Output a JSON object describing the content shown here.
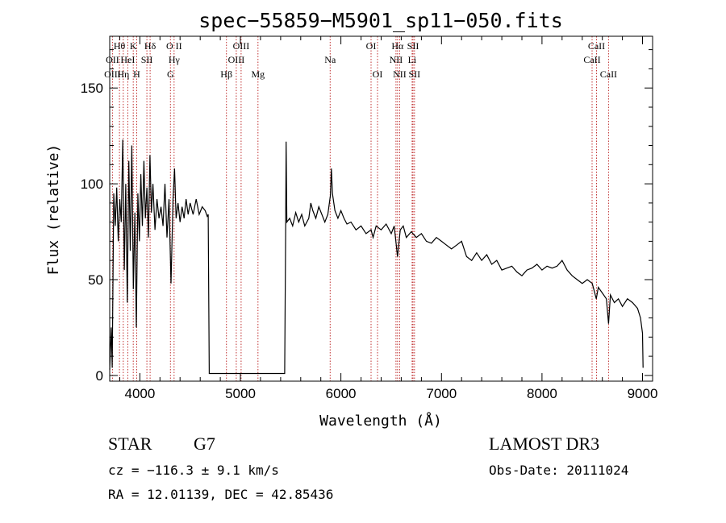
{
  "chart_data": {
    "type": "line",
    "title": "spec−55859−M5901_sp11−050.fits",
    "xlabel": "Wavelength (Å)",
    "ylabel": "Flux (relative)",
    "xlim": [
      3700,
      9100
    ],
    "ylim": [
      -3,
      177
    ],
    "xticks": [
      4000,
      5000,
      6000,
      7000,
      8000,
      9000
    ],
    "yticks": [
      0,
      50,
      100,
      150
    ],
    "series": [
      {
        "name": "flux",
        "color": "#000000",
        "points": [
          [
            3700,
            3
          ],
          [
            3715,
            25
          ],
          [
            3725,
            4
          ],
          [
            3740,
            95
          ],
          [
            3755,
            78
          ],
          [
            3770,
            98
          ],
          [
            3785,
            70
          ],
          [
            3800,
            92
          ],
          [
            3815,
            80
          ],
          [
            3830,
            123
          ],
          [
            3845,
            55
          ],
          [
            3860,
            100
          ],
          [
            3875,
            38
          ],
          [
            3890,
            112
          ],
          [
            3905,
            65
          ],
          [
            3920,
            120
          ],
          [
            3935,
            45
          ],
          [
            3950,
            85
          ],
          [
            3965,
            25
          ],
          [
            3980,
            95
          ],
          [
            3995,
            70
          ],
          [
            4010,
            105
          ],
          [
            4025,
            78
          ],
          [
            4040,
            112
          ],
          [
            4055,
            82
          ],
          [
            4070,
            98
          ],
          [
            4085,
            72
          ],
          [
            4100,
            115
          ],
          [
            4115,
            85
          ],
          [
            4130,
            100
          ],
          [
            4150,
            76
          ],
          [
            4170,
            92
          ],
          [
            4190,
            82
          ],
          [
            4210,
            88
          ],
          [
            4230,
            78
          ],
          [
            4250,
            100
          ],
          [
            4270,
            72
          ],
          [
            4290,
            92
          ],
          [
            4310,
            48
          ],
          [
            4330,
            92
          ],
          [
            4345,
            108
          ],
          [
            4360,
            82
          ],
          [
            4380,
            90
          ],
          [
            4400,
            80
          ],
          [
            4420,
            88
          ],
          [
            4440,
            82
          ],
          [
            4460,
            92
          ],
          [
            4480,
            84
          ],
          [
            4500,
            90
          ],
          [
            4530,
            84
          ],
          [
            4560,
            92
          ],
          [
            4590,
            84
          ],
          [
            4620,
            88
          ],
          [
            4650,
            86
          ],
          [
            4670,
            83
          ],
          [
            4680,
            84
          ],
          [
            4690,
            1
          ],
          [
            5000,
            1
          ],
          [
            5300,
            1
          ],
          [
            5440,
            1
          ],
          [
            5450,
            75
          ],
          [
            5455,
            122
          ],
          [
            5462,
            80
          ],
          [
            5490,
            82
          ],
          [
            5520,
            78
          ],
          [
            5550,
            85
          ],
          [
            5580,
            80
          ],
          [
            5610,
            84
          ],
          [
            5640,
            78
          ],
          [
            5680,
            82
          ],
          [
            5700,
            90
          ],
          [
            5720,
            86
          ],
          [
            5750,
            82
          ],
          [
            5780,
            88
          ],
          [
            5810,
            84
          ],
          [
            5840,
            80
          ],
          [
            5870,
            84
          ],
          [
            5895,
            94
          ],
          [
            5905,
            108
          ],
          [
            5915,
            95
          ],
          [
            5940,
            86
          ],
          [
            5970,
            82
          ],
          [
            6000,
            86
          ],
          [
            6030,
            82
          ],
          [
            6060,
            79
          ],
          [
            6100,
            80
          ],
          [
            6150,
            76
          ],
          [
            6200,
            78
          ],
          [
            6250,
            74
          ],
          [
            6300,
            76
          ],
          [
            6320,
            72
          ],
          [
            6350,
            78
          ],
          [
            6400,
            76
          ],
          [
            6450,
            79
          ],
          [
            6500,
            74
          ],
          [
            6530,
            78
          ],
          [
            6563,
            62
          ],
          [
            6590,
            76
          ],
          [
            6620,
            78
          ],
          [
            6650,
            72
          ],
          [
            6700,
            75
          ],
          [
            6750,
            72
          ],
          [
            6800,
            74
          ],
          [
            6850,
            70
          ],
          [
            6900,
            69
          ],
          [
            6950,
            72
          ],
          [
            7000,
            70
          ],
          [
            7050,
            68
          ],
          [
            7100,
            66
          ],
          [
            7150,
            68
          ],
          [
            7200,
            70
          ],
          [
            7250,
            62
          ],
          [
            7300,
            60
          ],
          [
            7350,
            64
          ],
          [
            7400,
            60
          ],
          [
            7450,
            63
          ],
          [
            7500,
            58
          ],
          [
            7550,
            60
          ],
          [
            7600,
            55
          ],
          [
            7650,
            56
          ],
          [
            7700,
            57
          ],
          [
            7750,
            54
          ],
          [
            7800,
            52
          ],
          [
            7850,
            55
          ],
          [
            7900,
            56
          ],
          [
            7950,
            58
          ],
          [
            8000,
            55
          ],
          [
            8050,
            57
          ],
          [
            8100,
            56
          ],
          [
            8150,
            57
          ],
          [
            8200,
            60
          ],
          [
            8250,
            55
          ],
          [
            8300,
            52
          ],
          [
            8350,
            50
          ],
          [
            8400,
            48
          ],
          [
            8450,
            50
          ],
          [
            8500,
            48
          ],
          [
            8540,
            40
          ],
          [
            8560,
            46
          ],
          [
            8600,
            43
          ],
          [
            8640,
            40
          ],
          [
            8662,
            27
          ],
          [
            8680,
            42
          ],
          [
            8720,
            38
          ],
          [
            8760,
            40
          ],
          [
            8800,
            36
          ],
          [
            8850,
            40
          ],
          [
            8900,
            38
          ],
          [
            8950,
            35
          ],
          [
            8980,
            30
          ],
          [
            9000,
            22
          ],
          [
            9005,
            4
          ]
        ]
      }
    ],
    "line_labels": [
      {
        "text": "Hθ",
        "x": 3797,
        "row": 1
      },
      {
        "text": "OII",
        "x": 3727,
        "row": 2
      },
      {
        "text": "OIII",
        "x": 3727,
        "row": 3
      },
      {
        "text": "K",
        "x": 3934,
        "row": 1
      },
      {
        "text": "HeI",
        "x": 3880,
        "row": 2
      },
      {
        "text": "Hη",
        "x": 3835,
        "row": 3
      },
      {
        "text": "SII",
        "x": 4070,
        "row": 2
      },
      {
        "text": "H",
        "x": 3969,
        "row": 3
      },
      {
        "text": "Hδ",
        "x": 4102,
        "row": 1
      },
      {
        "text": "O II",
        "x": 4340,
        "row": 1
      },
      {
        "text": "Hγ",
        "x": 4340,
        "row": 2
      },
      {
        "text": "G",
        "x": 4304,
        "row": 3
      },
      {
        "text": "OIII",
        "x": 5007,
        "row": 1
      },
      {
        "text": "OIII",
        "x": 4959,
        "row": 2
      },
      {
        "text": "Hβ",
        "x": 4861,
        "row": 3
      },
      {
        "text": "Mg",
        "x": 5175,
        "row": 3
      },
      {
        "text": "Na",
        "x": 5893,
        "row": 2
      },
      {
        "text": "OI",
        "x": 6300,
        "row": 1
      },
      {
        "text": "OI",
        "x": 6364,
        "row": 3
      },
      {
        "text": "Hα",
        "x": 6563,
        "row": 1
      },
      {
        "text": "NII",
        "x": 6548,
        "row": 2
      },
      {
        "text": "NII",
        "x": 6584,
        "row": 3
      },
      {
        "text": "SII",
        "x": 6717,
        "row": 1
      },
      {
        "text": "Li",
        "x": 6708,
        "row": 2
      },
      {
        "text": "SII",
        "x": 6731,
        "row": 3
      },
      {
        "text": "CaII",
        "x": 8542,
        "row": 1
      },
      {
        "text": "CaII",
        "x": 8498,
        "row": 2
      },
      {
        "text": "CaII",
        "x": 8662,
        "row": 3
      }
    ],
    "vlines": [
      3727,
      3797,
      3835,
      3880,
      3934,
      3969,
      4070,
      4102,
      4304,
      4340,
      4861,
      4959,
      5007,
      5175,
      5893,
      6300,
      6364,
      6548,
      6563,
      6584,
      6708,
      6717,
      6731,
      8498,
      8542,
      8662
    ],
    "vline_color": "#c03030"
  },
  "footer": {
    "object_class": "STAR",
    "subclass": "G7",
    "survey": "LAMOST DR3",
    "redshift_line": "cz = −116.3 ± 9.1 km/s",
    "obs_date": "Obs-Date: 20111024",
    "coords": "RA =  12.01139, DEC =  42.85436"
  }
}
